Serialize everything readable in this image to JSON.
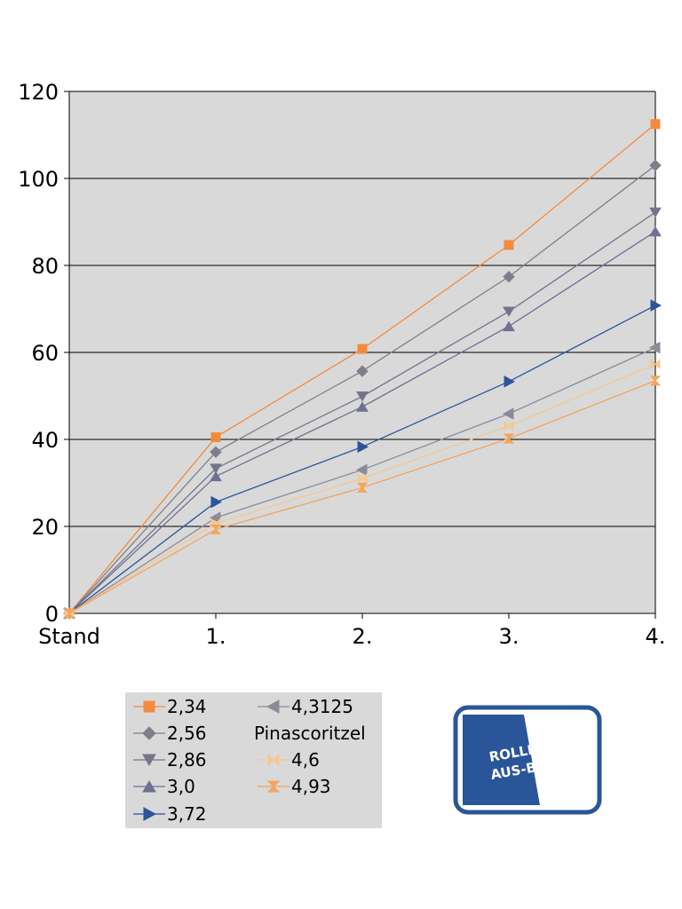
{
  "chart_data": {
    "type": "line",
    "title": "",
    "xlabel": "",
    "ylabel": "",
    "categories": [
      "Stand",
      "1.",
      "2.",
      "3.",
      "4."
    ],
    "ylim": [
      0,
      120
    ],
    "yticks": [
      0,
      20,
      40,
      60,
      80,
      100,
      120
    ],
    "grid": true,
    "legend": "bottom-left",
    "plot_background": "#d9d9d9",
    "series": [
      {
        "name": "2,34",
        "color": "#f58a3c",
        "marker": "square",
        "values": [
          0,
          40.5,
          60.8,
          84.7,
          112.5
        ]
      },
      {
        "name": "2,56",
        "color": "#7f7f8c",
        "marker": "diamond",
        "values": [
          0,
          37.1,
          55.7,
          77.4,
          103.0
        ]
      },
      {
        "name": "2,86",
        "color": "#75758a",
        "marker": "triangle-down",
        "values": [
          0,
          33.3,
          49.9,
          69.4,
          92.2
        ]
      },
      {
        "name": "3,0",
        "color": "#6f7092",
        "marker": "triangle-up",
        "values": [
          0,
          31.5,
          47.5,
          66.0,
          87.8
        ]
      },
      {
        "name": "3,72",
        "color": "#2a5598",
        "marker": "triangle-right",
        "values": [
          0,
          25.6,
          38.3,
          53.3,
          70.8
        ]
      },
      {
        "name": "4,3125 Pinascoritzel",
        "color": "#8c8c98",
        "marker": "triangle-left",
        "values": [
          0,
          22.0,
          33.0,
          45.9,
          61.1
        ]
      },
      {
        "name": "4,6",
        "color": "#f5c892",
        "marker": "bowtie",
        "values": [
          0,
          20.7,
          31.0,
          43.1,
          57.3
        ]
      },
      {
        "name": "4,93",
        "color": "#f5a45a",
        "marker": "hourglass",
        "values": [
          0,
          19.3,
          28.9,
          40.2,
          53.5
        ]
      }
    ]
  },
  "legend": {
    "items": [
      {
        "label": "2,34"
      },
      {
        "label": "2,56"
      },
      {
        "label": "2,86"
      },
      {
        "label": "3,0"
      },
      {
        "label": "3,72"
      },
      {
        "label": "4,3125",
        "label_line2": "Pinascoritzel"
      },
      {
        "label": "4,6"
      },
      {
        "label": "4,93"
      }
    ]
  },
  "logo": {
    "line1": "ROLLER-",
    "line2": "AUS-BLECH",
    "colors": {
      "primary": "#2a5598",
      "background": "#ffffff"
    }
  }
}
